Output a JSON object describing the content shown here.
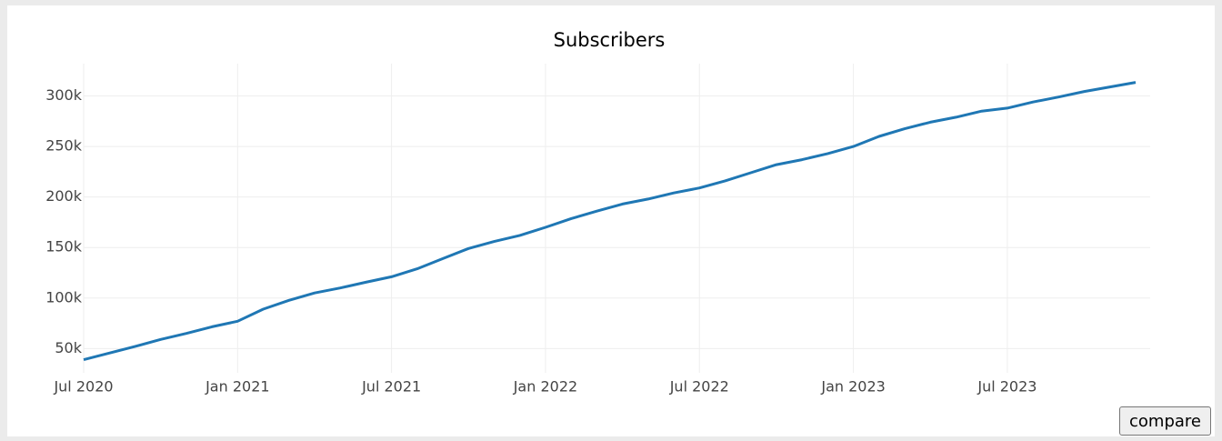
{
  "chart_data": {
    "type": "line",
    "title": "Subscribers",
    "x": [
      "2020-07",
      "2020-08",
      "2020-09",
      "2020-10",
      "2020-11",
      "2020-12",
      "2021-01",
      "2021-02",
      "2021-03",
      "2021-04",
      "2021-05",
      "2021-06",
      "2021-07",
      "2021-08",
      "2021-09",
      "2021-10",
      "2021-11",
      "2021-12",
      "2022-01",
      "2022-02",
      "2022-03",
      "2022-04",
      "2022-05",
      "2022-06",
      "2022-07",
      "2022-08",
      "2022-09",
      "2022-10",
      "2022-11",
      "2022-12",
      "2023-01",
      "2023-02",
      "2023-03",
      "2023-04",
      "2023-05",
      "2023-06",
      "2023-07",
      "2023-08",
      "2023-09",
      "2023-10",
      "2023-11",
      "2023-12"
    ],
    "series": [
      {
        "name": "Subscribers",
        "color": "#1f77b4",
        "values": [
          39000,
          45500,
          52000,
          59000,
          65000,
          71500,
          77000,
          89000,
          97700,
          105000,
          110000,
          115600,
          121000,
          129000,
          139000,
          149000,
          156000,
          162000,
          170000,
          178600,
          186000,
          193000,
          198000,
          204000,
          209000,
          216000,
          224000,
          232000,
          237000,
          243000,
          250000,
          260000,
          267600,
          274000,
          279000,
          285000,
          288000,
          294000,
          299000,
          304500,
          309000,
          313500
        ]
      }
    ],
    "xlim": [
      "2020-07",
      "2023-12"
    ],
    "xticks": [
      {
        "value": "2020-07",
        "label": "Jul 2020"
      },
      {
        "value": "2021-01",
        "label": "Jan 2021"
      },
      {
        "value": "2021-07",
        "label": "Jul 2021"
      },
      {
        "value": "2022-01",
        "label": "Jan 2022"
      },
      {
        "value": "2022-07",
        "label": "Jul 2022"
      },
      {
        "value": "2023-01",
        "label": "Jan 2023"
      },
      {
        "value": "2023-07",
        "label": "Jul 2023"
      }
    ],
    "ylim": [
      26000,
      332000
    ],
    "yticks": [
      {
        "value": 50000,
        "label": "50k"
      },
      {
        "value": 100000,
        "label": "100k"
      },
      {
        "value": 150000,
        "label": "150k"
      },
      {
        "value": 200000,
        "label": "200k"
      },
      {
        "value": 250000,
        "label": "250k"
      },
      {
        "value": 300000,
        "label": "300k"
      }
    ],
    "grid": true
  },
  "compare_button": "compare"
}
